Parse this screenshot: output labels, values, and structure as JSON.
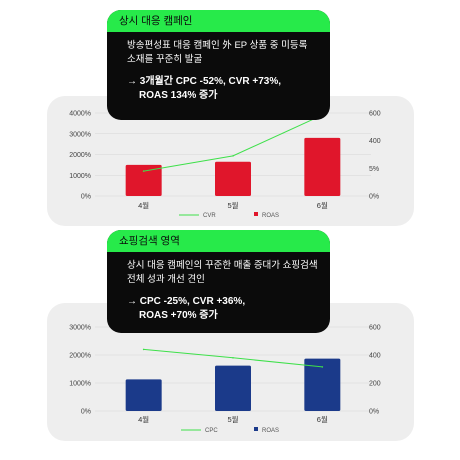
{
  "chart_data": [
    {
      "type": "bar+line",
      "categories": [
        "4월",
        "5월",
        "6월"
      ],
      "left_axis_ticks": [
        "0%",
        "1000%",
        "2000%",
        "3000%",
        "4000%"
      ],
      "right_axis_ticks": [
        "0%",
        "5%",
        "400",
        "600"
      ],
      "series": [
        {
          "name": "ROAS",
          "kind": "bar",
          "axis": "left",
          "values": [
            1500,
            1650,
            2800
          ],
          "color": "#e0162b"
        },
        {
          "name": "CVR",
          "kind": "line",
          "axis": "right",
          "values": [
            180,
            290,
            585
          ],
          "color": "#3ee04a"
        }
      ],
      "ylim_left": [
        0,
        4000
      ],
      "ylim_right": [
        0,
        600
      ],
      "legend": "bottom-center"
    },
    {
      "type": "bar+line",
      "categories": [
        "4월",
        "5월",
        "6월"
      ],
      "left_axis_ticks": [
        "0%",
        "1000%",
        "2000%",
        "3000%"
      ],
      "right_axis_ticks": [
        "0%",
        "200",
        "400",
        "600"
      ],
      "series": [
        {
          "name": "ROAS",
          "kind": "bar",
          "axis": "left",
          "values": [
            1130,
            1620,
            1870
          ],
          "color": "#1b3a8a"
        },
        {
          "name": "CPC",
          "kind": "line",
          "axis": "right",
          "values": [
            440,
            380,
            315
          ],
          "color": "#3ee04a"
        }
      ],
      "ylim_left": [
        0,
        3000
      ],
      "ylim_right": [
        0,
        600
      ],
      "legend": "bottom-center"
    }
  ],
  "callouts": [
    {
      "title": "상시 대응 캠페인",
      "body": "방송편성표 대응 캠페인 外 EP 상품 중 미등록 소재를 꾸준히 발굴",
      "highlight_1": "→ 3개월간 CPC -52%, CVR +73%,",
      "highlight_2": "ROAS 134% 증가"
    },
    {
      "title": "쇼핑검색 영역",
      "body": "상시 대응 캠페인의 꾸준한 매출 증대가 쇼핑검색 전체 성과 개선 견인",
      "highlight_1": "→ CPC -25%, CVR +36%,",
      "highlight_2": "ROAS +70% 증가"
    }
  ]
}
